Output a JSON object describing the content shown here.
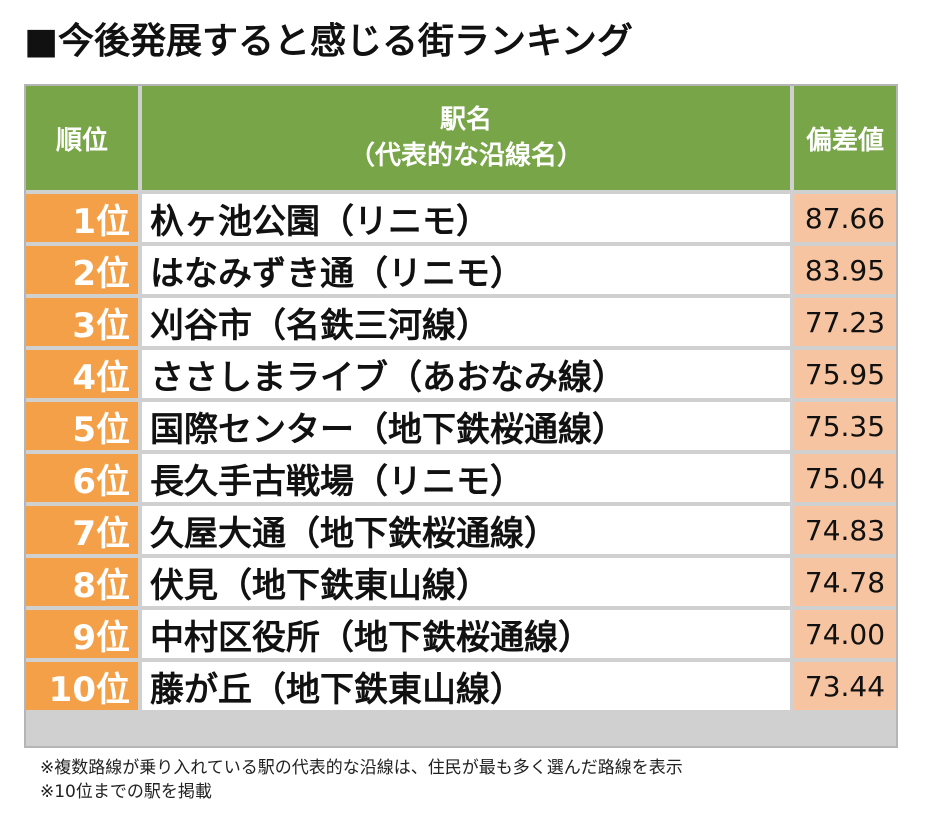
{
  "title": "■今後発展すると感じる街ランキング",
  "table": {
    "headers": {
      "rank": "順位",
      "name_line1": "駅名",
      "name_line2": "（代表的な沿線名）",
      "score": "偏差値"
    },
    "rows": [
      {
        "rank": "1位",
        "name": "杁ヶ池公園（リニモ）",
        "score": "87.66"
      },
      {
        "rank": "2位",
        "name": "はなみずき通（リニモ）",
        "score": "83.95"
      },
      {
        "rank": "3位",
        "name": "刈谷市（名鉄三河線）",
        "score": "77.23"
      },
      {
        "rank": "4位",
        "name": "ささしまライブ（あおなみ線）",
        "score": "75.95"
      },
      {
        "rank": "5位",
        "name": "国際センター（地下鉄桜通線）",
        "score": "75.35"
      },
      {
        "rank": "6位",
        "name": "長久手古戦場（リニモ）",
        "score": "75.04"
      },
      {
        "rank": "7位",
        "name": "久屋大通（地下鉄桜通線）",
        "score": "74.83"
      },
      {
        "rank": "8位",
        "name": "伏見（地下鉄東山線）",
        "score": "74.78"
      },
      {
        "rank": "9位",
        "name": "中村区役所（地下鉄桜通線）",
        "score": "74.00"
      },
      {
        "rank": "10位",
        "name": "藤が丘（地下鉄東山線）",
        "score": "73.44"
      }
    ]
  },
  "notes": [
    "※複数路線が乗り入れている駅の代表的な沿線は、住民が最も多く選んだ路線を表示",
    "※10位までの駅を掲載"
  ],
  "colors": {
    "header": "#77a548",
    "rank": "#f4a048",
    "score": "#f6c4a0"
  }
}
